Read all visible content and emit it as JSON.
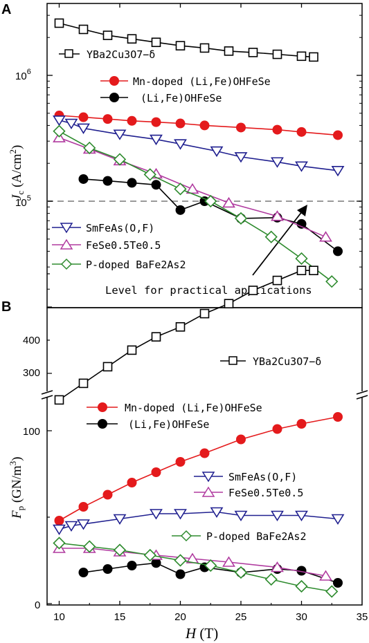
{
  "chart_data": [
    {
      "panel": "A",
      "type": "line",
      "yscale": "log",
      "ylim": [
        20000,
        3000000
      ],
      "xlim": [
        9,
        35
      ],
      "ylabel": "J_c (A/cm^2)",
      "ytick_labels": [
        "10^5",
        "10^6"
      ],
      "reference_line": {
        "y": 100000,
        "label": "Level for practical applications"
      },
      "series": [
        {
          "name": "YBa2Cu3O7-δ",
          "color": "#000000",
          "marker": "square",
          "x": [
            10,
            12,
            14,
            16,
            18,
            20,
            22,
            24,
            26,
            28,
            30,
            31
          ],
          "y": [
            2600000,
            2320000,
            2080000,
            1950000,
            1830000,
            1720000,
            1650000,
            1560000,
            1520000,
            1470000,
            1420000,
            1400000
          ]
        },
        {
          "name": "Mn-doped (Li,Fe)OHFeSe",
          "color": "#e41a1c",
          "marker": "circle",
          "x": [
            10,
            12,
            14,
            16,
            18,
            20,
            22,
            25,
            28,
            30,
            33
          ],
          "y": [
            480000,
            465000,
            450000,
            435000,
            425000,
            415000,
            400000,
            385000,
            370000,
            355000,
            335000
          ]
        },
        {
          "name": "(Li,Fe)OHFeSe",
          "color": "#000000",
          "marker": "circle",
          "x": [
            12,
            14,
            16,
            18,
            20,
            22,
            25,
            28,
            30,
            33
          ],
          "y": [
            150000,
            145000,
            140000,
            135000,
            85000,
            100000,
            73000,
            74000,
            66000,
            40000
          ]
        },
        {
          "name": "SmFeAs(O,F)",
          "color": "#1f1f8f",
          "marker": "triangle-down",
          "x": [
            10,
            11,
            12,
            15,
            18,
            20,
            23,
            25,
            28,
            30,
            33
          ],
          "y": [
            440000,
            415000,
            380000,
            340000,
            310000,
            285000,
            250000,
            225000,
            205000,
            190000,
            175000
          ]
        },
        {
          "name": "FeSe0.5Te0.5",
          "color": "#b03a9f",
          "marker": "triangle-up",
          "x": [
            10,
            12.5,
            15,
            18,
            21,
            24,
            28,
            32
          ],
          "y": [
            320000,
            260000,
            210000,
            165000,
            125000,
            97000,
            76000,
            52000
          ]
        },
        {
          "name": "P-doped BaFe2As2",
          "color": "#2e8b2e",
          "marker": "diamond",
          "x": [
            10,
            12.5,
            15,
            17.5,
            20,
            22.5,
            25,
            27.5,
            30,
            32.5
          ],
          "y": [
            360000,
            265000,
            215000,
            163000,
            125000,
            100000,
            73000,
            52000,
            35000,
            23000
          ]
        }
      ]
    },
    {
      "panel": "B",
      "type": "line",
      "xlim": [
        9,
        35
      ],
      "ylim": [
        0,
        480
      ],
      "axis_break": [
        120,
        270
      ],
      "xlabel": "H (T)",
      "ylabel": "F_p (GN/m^3)",
      "series": [
        {
          "name": "YBa2Cu3O7-δ",
          "color": "#000000",
          "marker": "square",
          "x": [
            10,
            12,
            14,
            16,
            18,
            20,
            22,
            24,
            26,
            28,
            30,
            31
          ],
          "y": [
            260,
            285,
            310,
            335,
            355,
            370,
            390,
            405,
            425,
            440,
            455,
            455
          ]
        },
        {
          "name": "Mn-doped (Li,Fe)OHFeSe",
          "color": "#e41a1c",
          "marker": "circle",
          "x": [
            10,
            12,
            14,
            16,
            18,
            20,
            22,
            25,
            28,
            30,
            33
          ],
          "y": [
            48,
            56,
            63,
            70,
            76,
            82,
            87,
            95,
            101,
            104,
            108
          ]
        },
        {
          "name": "(Li,Fe)OHFeSe",
          "color": "#000000",
          "marker": "circle",
          "x": [
            12,
            14,
            16,
            18,
            20,
            22,
            25,
            28,
            30,
            33
          ],
          "y": [
            18,
            20,
            22,
            23.5,
            17,
            21,
            18,
            20,
            19,
            12
          ]
        },
        {
          "name": "SmFeAs(O,F)",
          "color": "#1f1f8f",
          "marker": "triangle-down",
          "x": [
            10,
            11,
            12,
            15,
            18,
            20,
            23,
            25,
            28,
            30,
            33
          ],
          "y": [
            43,
            45,
            46,
            49,
            52,
            52,
            53,
            51,
            51,
            51,
            49
          ]
        },
        {
          "name": "FeSe0.5Te0.5",
          "color": "#b03a9f",
          "marker": "triangle-up",
          "x": [
            10,
            12.5,
            15,
            18,
            21,
            24,
            28,
            32
          ],
          "y": [
            32,
            32,
            30,
            28,
            26,
            24,
            21,
            16
          ]
        },
        {
          "name": "P-doped BaFe2As2",
          "color": "#2e8b2e",
          "marker": "diamond",
          "x": [
            10,
            12.5,
            15,
            17.5,
            20,
            22.5,
            25,
            27.5,
            30,
            32.5
          ],
          "y": [
            35,
            33,
            31,
            28,
            25,
            22,
            18,
            14,
            10,
            7
          ]
        }
      ]
    }
  ],
  "panel_labels": {
    "a": "A",
    "b": "B"
  },
  "labels": {
    "a_reference": "Level for practical applications",
    "xlabel": "H (T)",
    "ylabel_a": "Jc (A/cm2)",
    "ylabel_b": "Fp (GN/m3)"
  },
  "ticks": {
    "a_ytick_1": "10",
    "a_ytick_1_exp": "5",
    "a_ytick_2": "10",
    "a_ytick_2_exp": "6",
    "b_y_low": [
      "0",
      "100"
    ],
    "b_y_high": [
      "300",
      "400"
    ],
    "x": [
      "10",
      "15",
      "20",
      "25",
      "30",
      "35"
    ]
  },
  "legends": {
    "a_ybco": "YBa2Cu3O7−δ",
    "a_mn": "Mn-doped (Li,Fe)OHFeSe",
    "a_li": "(Li,Fe)OHFeSe",
    "a_sm": "SmFeAs(O,F)",
    "a_fese": "FeSe0.5Te0.5",
    "a_ba": "P-doped BaFe2As2",
    "b_ybco": "YBa2Cu3O7−δ",
    "b_mn": "Mn-doped (Li,Fe)OHFeSe",
    "b_li": "(Li,Fe)OHFeSe",
    "b_sm": "SmFeAs(O,F)",
    "b_fese": "FeSe0.5Te0.5",
    "b_ba": "P-doped BaFe2As2"
  }
}
